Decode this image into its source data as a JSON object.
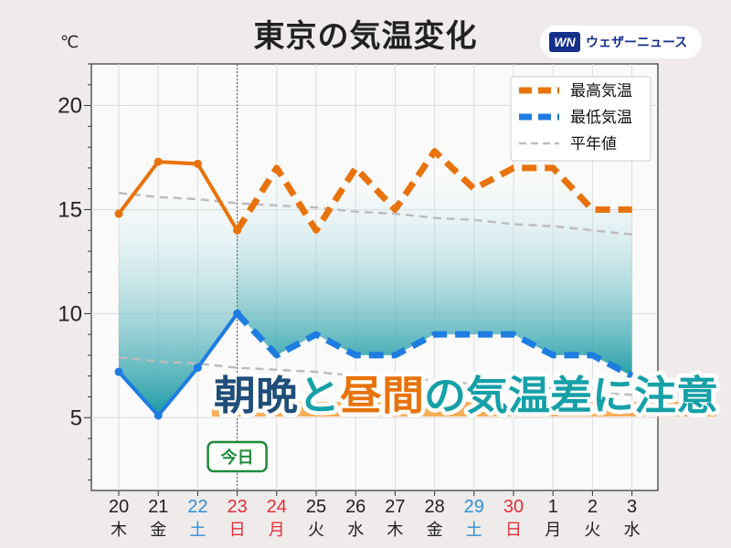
{
  "title": "東京の気温変化",
  "unit": "℃",
  "logo": {
    "mark": "WN",
    "text": "ウェザーニュース"
  },
  "today_label": "今日",
  "banner": [
    {
      "text": "朝晩",
      "color": "#1f4e79"
    },
    {
      "text": "と",
      "color": "#16a0a8"
    },
    {
      "text": "昼間",
      "color": "#e8730c"
    },
    {
      "text": "の気温差に注意",
      "color": "#16a0a8"
    }
  ],
  "colors": {
    "max": "#e8730c",
    "min": "#1e7de0",
    "normal": "#bdbdbd",
    "saturday": "#2f8fd8",
    "sunday": "#e0303a",
    "weekday": "#222222",
    "band_top": "#ffffff",
    "band_bottom": "#1a9aa4"
  },
  "chart_data": {
    "type": "line",
    "title": "東京の気温変化",
    "ylabel": "℃",
    "ylim": [
      1.5,
      22
    ],
    "yticks": [
      5,
      10,
      15,
      20
    ],
    "grid": true,
    "legend_position": "top-right",
    "today_index": 3,
    "x": [
      {
        "day": "20",
        "dow": "木",
        "kind": "weekday"
      },
      {
        "day": "21",
        "dow": "金",
        "kind": "weekday"
      },
      {
        "day": "22",
        "dow": "土",
        "kind": "saturday"
      },
      {
        "day": "23",
        "dow": "日",
        "kind": "sunday"
      },
      {
        "day": "24",
        "dow": "月",
        "kind": "sunday"
      },
      {
        "day": "25",
        "dow": "火",
        "kind": "weekday"
      },
      {
        "day": "26",
        "dow": "水",
        "kind": "weekday"
      },
      {
        "day": "27",
        "dow": "木",
        "kind": "weekday"
      },
      {
        "day": "28",
        "dow": "金",
        "kind": "weekday"
      },
      {
        "day": "29",
        "dow": "土",
        "kind": "saturday"
      },
      {
        "day": "30",
        "dow": "日",
        "kind": "sunday"
      },
      {
        "day": "1",
        "dow": "月",
        "kind": "weekday"
      },
      {
        "day": "2",
        "dow": "火",
        "kind": "weekday"
      },
      {
        "day": "3",
        "dow": "水",
        "kind": "weekday"
      }
    ],
    "series": [
      {
        "name": "最高気温",
        "values": [
          14.8,
          17.3,
          17.2,
          14.0,
          17.0,
          14.0,
          17.0,
          15.0,
          17.8,
          16.0,
          17.0,
          17.0,
          15.0,
          15.0
        ]
      },
      {
        "name": "最低気温",
        "values": [
          7.2,
          5.1,
          7.4,
          10.0,
          8.0,
          9.0,
          8.0,
          8.0,
          9.0,
          9.0,
          9.0,
          8.0,
          8.0,
          7.0
        ]
      },
      {
        "name": "平年値",
        "values": [
          15.8,
          15.6,
          15.5,
          15.3,
          15.2,
          15.1,
          14.9,
          14.8,
          14.6,
          14.5,
          14.3,
          14.2,
          14.0,
          13.8
        ]
      },
      {
        "name": "平年値",
        "values": [
          7.9,
          7.7,
          7.6,
          7.4,
          7.3,
          7.2,
          7.0,
          6.9,
          6.8,
          6.6,
          6.5,
          6.4,
          6.2,
          6.1
        ]
      }
    ],
    "legend": [
      "最高気温",
      "最低気温",
      "平年値"
    ]
  }
}
